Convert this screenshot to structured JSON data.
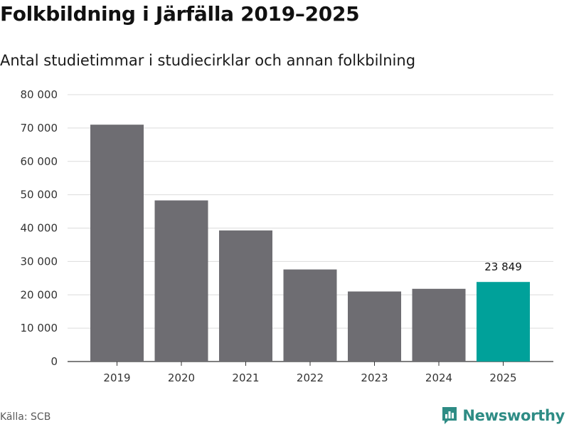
{
  "title": "Folkbildning i Järfälla 2019–2025",
  "subtitle": "Antal studietimmar i studiecirklar och annan folkbilning",
  "source": "Källa: SCB",
  "brand": {
    "name": "Newsworthy",
    "icon": "newsworthy-logo-icon",
    "color": "#2e8c85"
  },
  "colors": {
    "bar": "#6e6d72",
    "highlight": "#00a19a",
    "grid": "#dcdcdc",
    "axis": "#333333"
  },
  "chart_data": {
    "type": "bar",
    "title": "Folkbildning i Järfälla 2019–2025",
    "subtitle": "Antal studietimmar i studiecirklar och annan folkbilning",
    "xlabel": "",
    "ylabel": "",
    "categories": [
      "2019",
      "2020",
      "2021",
      "2022",
      "2023",
      "2024",
      "2025"
    ],
    "values": [
      71000,
      48300,
      39300,
      27600,
      21000,
      21800,
      23849
    ],
    "ylim": [
      0,
      80000
    ],
    "yticks": [
      0,
      10000,
      20000,
      30000,
      40000,
      50000,
      60000,
      70000,
      80000
    ],
    "ytick_labels": [
      "0",
      "10 000",
      "20 000",
      "30 000",
      "40 000",
      "50 000",
      "60 000",
      "70 000",
      "80 000"
    ],
    "highlight_index": 6,
    "data_labels": [
      {
        "index": 6,
        "text": "23 849"
      }
    ],
    "grid": true,
    "legend": "none"
  }
}
